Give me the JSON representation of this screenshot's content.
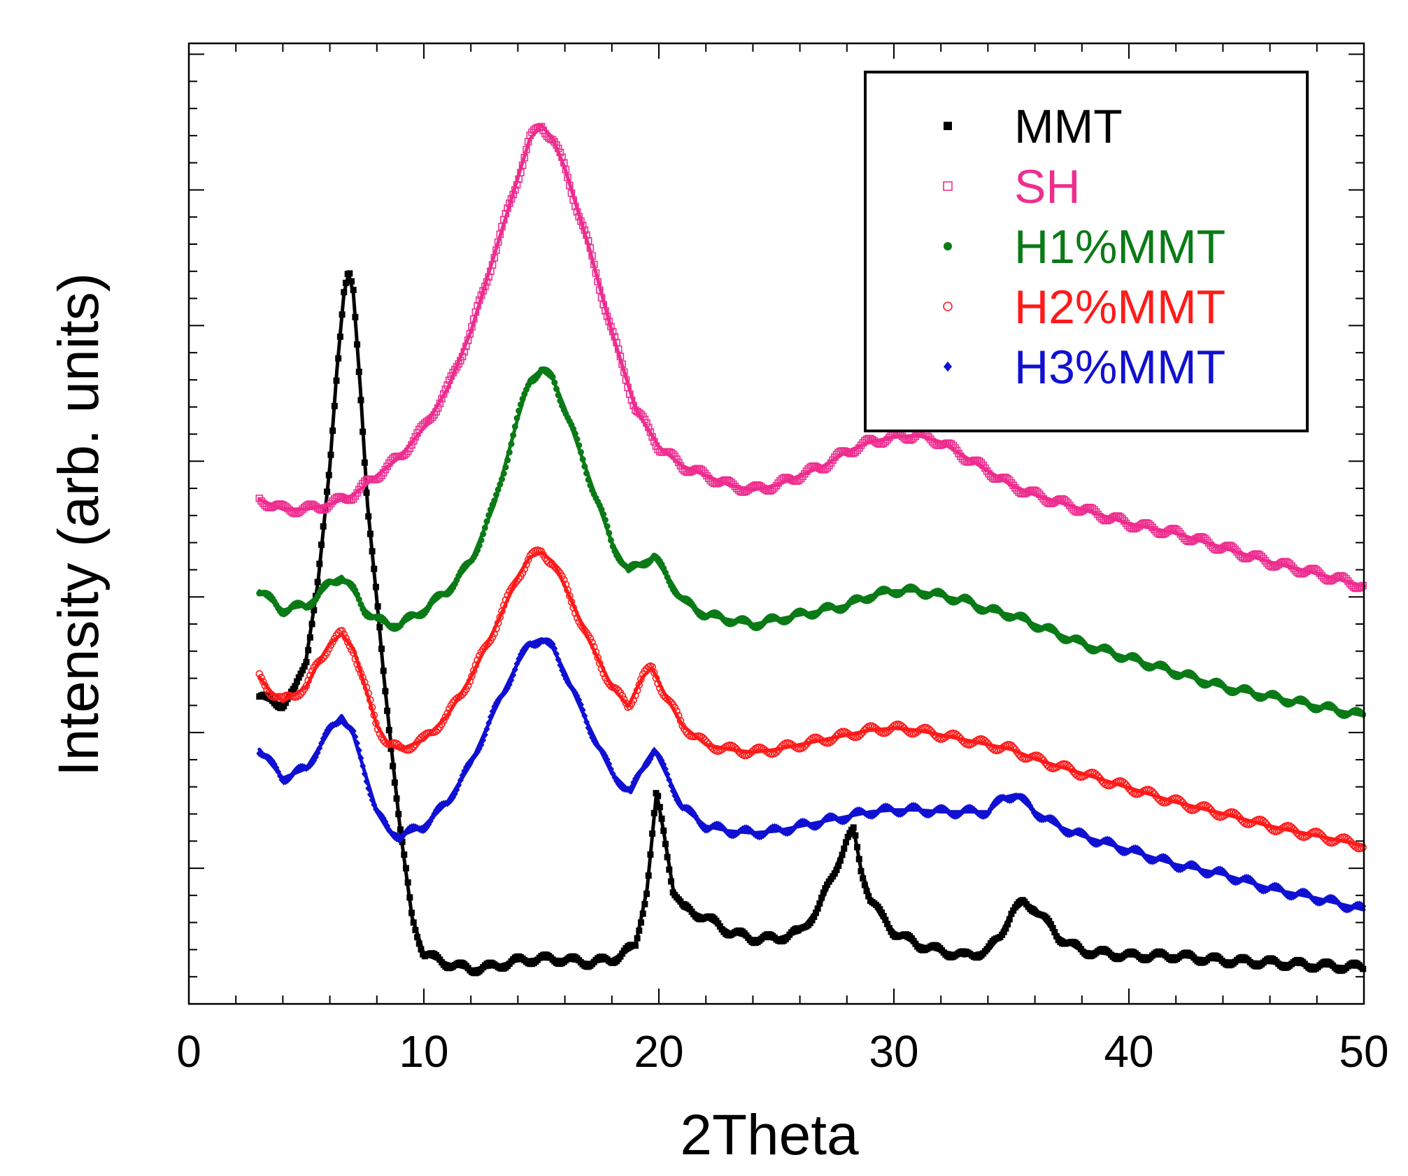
{
  "chart_data": {
    "type": "scatter",
    "title": "",
    "xlabel": "2Theta",
    "ylabel": "Intensity (arb. units)",
    "xlim": [
      0,
      50
    ],
    "ylim": [
      0,
      100
    ],
    "y_ticks_labeled": false,
    "x_ticks": [
      0,
      10,
      20,
      30,
      40,
      50
    ],
    "x_tick_labels": [
      "0",
      "10",
      "20",
      "30",
      "40",
      "50"
    ],
    "legend_position": "top-right",
    "series": [
      {
        "name": "MMT",
        "color": "#000000",
        "marker": "filled-square",
        "points": [
          [
            3,
            32
          ],
          [
            3.5,
            31.5
          ],
          [
            4,
            31.2
          ],
          [
            4.5,
            32.5
          ],
          [
            5,
            36
          ],
          [
            5.5,
            44
          ],
          [
            6,
            56
          ],
          [
            6.3,
            66
          ],
          [
            6.6,
            74
          ],
          [
            6.8,
            76
          ],
          [
            7,
            74
          ],
          [
            7.3,
            64
          ],
          [
            7.6,
            52
          ],
          [
            8,
            42
          ],
          [
            8.3,
            34
          ],
          [
            8.6,
            27
          ],
          [
            9,
            18
          ],
          [
            9.5,
            9
          ],
          [
            10,
            5.2
          ],
          [
            11,
            4.2
          ],
          [
            12,
            3.6
          ],
          [
            13,
            3.9
          ],
          [
            14,
            4.5
          ],
          [
            15,
            4.7
          ],
          [
            16,
            4.6
          ],
          [
            17,
            4.3
          ],
          [
            18,
            4.6
          ],
          [
            19,
            6
          ],
          [
            19.5,
            12
          ],
          [
            19.9,
            22
          ],
          [
            20.2,
            18
          ],
          [
            20.6,
            12
          ],
          [
            21,
            10
          ],
          [
            22,
            9
          ],
          [
            23,
            7.5
          ],
          [
            24,
            6.8
          ],
          [
            25,
            6.8
          ],
          [
            26,
            7.5
          ],
          [
            26.8,
            10
          ],
          [
            27.5,
            14
          ],
          [
            28,
            17
          ],
          [
            28.3,
            18
          ],
          [
            28.6,
            14
          ],
          [
            29,
            11
          ],
          [
            29.5,
            9
          ],
          [
            30,
            7.5
          ],
          [
            31,
            6.2
          ],
          [
            32,
            5.5
          ],
          [
            33,
            5
          ],
          [
            34,
            5.5
          ],
          [
            34.5,
            7
          ],
          [
            35,
            9.5
          ],
          [
            35.5,
            10.5
          ],
          [
            36,
            10
          ],
          [
            36.5,
            8.5
          ],
          [
            37,
            7
          ],
          [
            38,
            5.5
          ],
          [
            40,
            5
          ],
          [
            42,
            5
          ],
          [
            44,
            4.5
          ],
          [
            46,
            4.3
          ],
          [
            48,
            4
          ],
          [
            50,
            3.8
          ]
        ]
      },
      {
        "name": "SH",
        "color": "#ee2d8f",
        "marker": "open-square",
        "points": [
          [
            3,
            52.5
          ],
          [
            4,
            51.5
          ],
          [
            5,
            51.5
          ],
          [
            6,
            52
          ],
          [
            7,
            53
          ],
          [
            8,
            55
          ],
          [
            9,
            57
          ],
          [
            10,
            60
          ],
          [
            11,
            64
          ],
          [
            12,
            70
          ],
          [
            13,
            78
          ],
          [
            14,
            86
          ],
          [
            14.5,
            90
          ],
          [
            15,
            91.5
          ],
          [
            15.5,
            90
          ],
          [
            16,
            87
          ],
          [
            17,
            79
          ],
          [
            18,
            70
          ],
          [
            19,
            62
          ],
          [
            20,
            58
          ],
          [
            21,
            56
          ],
          [
            22,
            55
          ],
          [
            23,
            54
          ],
          [
            24,
            53.5
          ],
          [
            25,
            54
          ],
          [
            26,
            55
          ],
          [
            27,
            56
          ],
          [
            28,
            57.5
          ],
          [
            29,
            58.5
          ],
          [
            30,
            59
          ],
          [
            31,
            59.2
          ],
          [
            32,
            58.5
          ],
          [
            33,
            57
          ],
          [
            34,
            55.5
          ],
          [
            35,
            54
          ],
          [
            36,
            53
          ],
          [
            38,
            51.5
          ],
          [
            40,
            50
          ],
          [
            42,
            49
          ],
          [
            44,
            47.5
          ],
          [
            46,
            46
          ],
          [
            48,
            44.8
          ],
          [
            50,
            43.5
          ]
        ]
      },
      {
        "name": "H1%MMT",
        "color": "#0a7a16",
        "marker": "filled-circle",
        "points": [
          [
            3,
            43
          ],
          [
            3.5,
            42
          ],
          [
            4,
            41
          ],
          [
            5,
            41.5
          ],
          [
            5.5,
            42.5
          ],
          [
            6,
            43.8
          ],
          [
            6.5,
            44.5
          ],
          [
            7,
            43
          ],
          [
            7.5,
            41
          ],
          [
            8,
            40
          ],
          [
            8.5,
            39.5
          ],
          [
            9,
            39.5
          ],
          [
            10,
            41
          ],
          [
            11,
            43
          ],
          [
            12,
            46
          ],
          [
            13,
            52
          ],
          [
            14,
            61
          ],
          [
            14.5,
            65
          ],
          [
            15,
            66
          ],
          [
            15.5,
            65
          ],
          [
            16,
            62
          ],
          [
            17,
            55
          ],
          [
            18,
            48
          ],
          [
            18.7,
            45
          ],
          [
            19.3,
            46
          ],
          [
            19.8,
            46.5
          ],
          [
            20.5,
            44
          ],
          [
            21,
            42
          ],
          [
            22,
            40.5
          ],
          [
            23,
            40
          ],
          [
            24,
            39.5
          ],
          [
            25,
            40
          ],
          [
            26,
            40.5
          ],
          [
            27,
            41
          ],
          [
            28,
            41.5
          ],
          [
            29,
            42.5
          ],
          [
            30,
            43
          ],
          [
            31,
            43
          ],
          [
            32,
            42.5
          ],
          [
            33,
            42
          ],
          [
            34,
            41
          ],
          [
            35,
            40.5
          ],
          [
            36,
            39.5
          ],
          [
            38,
            37.5
          ],
          [
            40,
            36
          ],
          [
            42,
            34.5
          ],
          [
            44,
            33
          ],
          [
            46,
            32
          ],
          [
            48,
            31
          ],
          [
            50,
            30
          ]
        ]
      },
      {
        "name": "H2%MMT",
        "color": "#ff1a1a",
        "marker": "open-circle",
        "points": [
          [
            3,
            34
          ],
          [
            3.5,
            32.5
          ],
          [
            4,
            31.5
          ],
          [
            5,
            33
          ],
          [
            5.5,
            35.5
          ],
          [
            6,
            37.5
          ],
          [
            6.5,
            38.5
          ],
          [
            7,
            37
          ],
          [
            7.5,
            33
          ],
          [
            8,
            29
          ],
          [
            8.5,
            27
          ],
          [
            9,
            26.5
          ],
          [
            10,
            27.5
          ],
          [
            11,
            30
          ],
          [
            12,
            34
          ],
          [
            13,
            39
          ],
          [
            14,
            44.5
          ],
          [
            14.5,
            46.5
          ],
          [
            15,
            47
          ],
          [
            15.5,
            46
          ],
          [
            16,
            43.5
          ],
          [
            17,
            38
          ],
          [
            18,
            33
          ],
          [
            18.7,
            31
          ],
          [
            19.3,
            34
          ],
          [
            19.7,
            35
          ],
          [
            20.2,
            32.5
          ],
          [
            21,
            29
          ],
          [
            22,
            27
          ],
          [
            23,
            26.5
          ],
          [
            24,
            26.2
          ],
          [
            25,
            26.5
          ],
          [
            26,
            27
          ],
          [
            27,
            27.5
          ],
          [
            28,
            28
          ],
          [
            29,
            28.5
          ],
          [
            30,
            28.7
          ],
          [
            31,
            28.5
          ],
          [
            32,
            28
          ],
          [
            33,
            27.5
          ],
          [
            34,
            27
          ],
          [
            35,
            26.5
          ],
          [
            36,
            25.5
          ],
          [
            38,
            24
          ],
          [
            40,
            22.5
          ],
          [
            42,
            21
          ],
          [
            44,
            19.8
          ],
          [
            46,
            18.5
          ],
          [
            48,
            17.5
          ],
          [
            50,
            16.5
          ]
        ]
      },
      {
        "name": "H3%MMT",
        "color": "#1010d2",
        "marker": "filled-diamond",
        "points": [
          [
            3,
            26.5
          ],
          [
            3.5,
            25
          ],
          [
            4,
            23.5
          ],
          [
            5,
            24.5
          ],
          [
            5.5,
            26.5
          ],
          [
            6,
            28.5
          ],
          [
            6.5,
            30
          ],
          [
            7,
            28
          ],
          [
            7.5,
            24
          ],
          [
            8,
            20
          ],
          [
            8.5,
            18
          ],
          [
            9,
            17.5
          ],
          [
            10,
            18.5
          ],
          [
            11,
            21
          ],
          [
            12,
            25
          ],
          [
            13,
            30.5
          ],
          [
            14,
            35.5
          ],
          [
            14.5,
            37.5
          ],
          [
            15,
            38
          ],
          [
            15.5,
            37
          ],
          [
            16,
            34.5
          ],
          [
            17,
            29
          ],
          [
            18,
            24
          ],
          [
            18.8,
            22
          ],
          [
            19.4,
            25
          ],
          [
            19.8,
            26.5
          ],
          [
            20.3,
            24
          ],
          [
            21,
            20.5
          ],
          [
            22,
            18.5
          ],
          [
            23,
            18
          ],
          [
            24,
            17.8
          ],
          [
            25,
            18
          ],
          [
            26,
            18.5
          ],
          [
            27,
            19
          ],
          [
            28,
            19.5
          ],
          [
            29,
            20
          ],
          [
            30,
            20.2
          ],
          [
            31,
            20.2
          ],
          [
            32,
            20
          ],
          [
            33,
            20
          ],
          [
            34,
            20
          ],
          [
            34.7,
            21.5
          ],
          [
            35.2,
            21.8
          ],
          [
            36,
            20
          ],
          [
            37,
            18.5
          ],
          [
            38,
            17.5
          ],
          [
            40,
            16
          ],
          [
            42,
            14.5
          ],
          [
            44,
            13.5
          ],
          [
            46,
            12
          ],
          [
            48,
            11
          ],
          [
            50,
            9.8
          ]
        ]
      }
    ]
  }
}
